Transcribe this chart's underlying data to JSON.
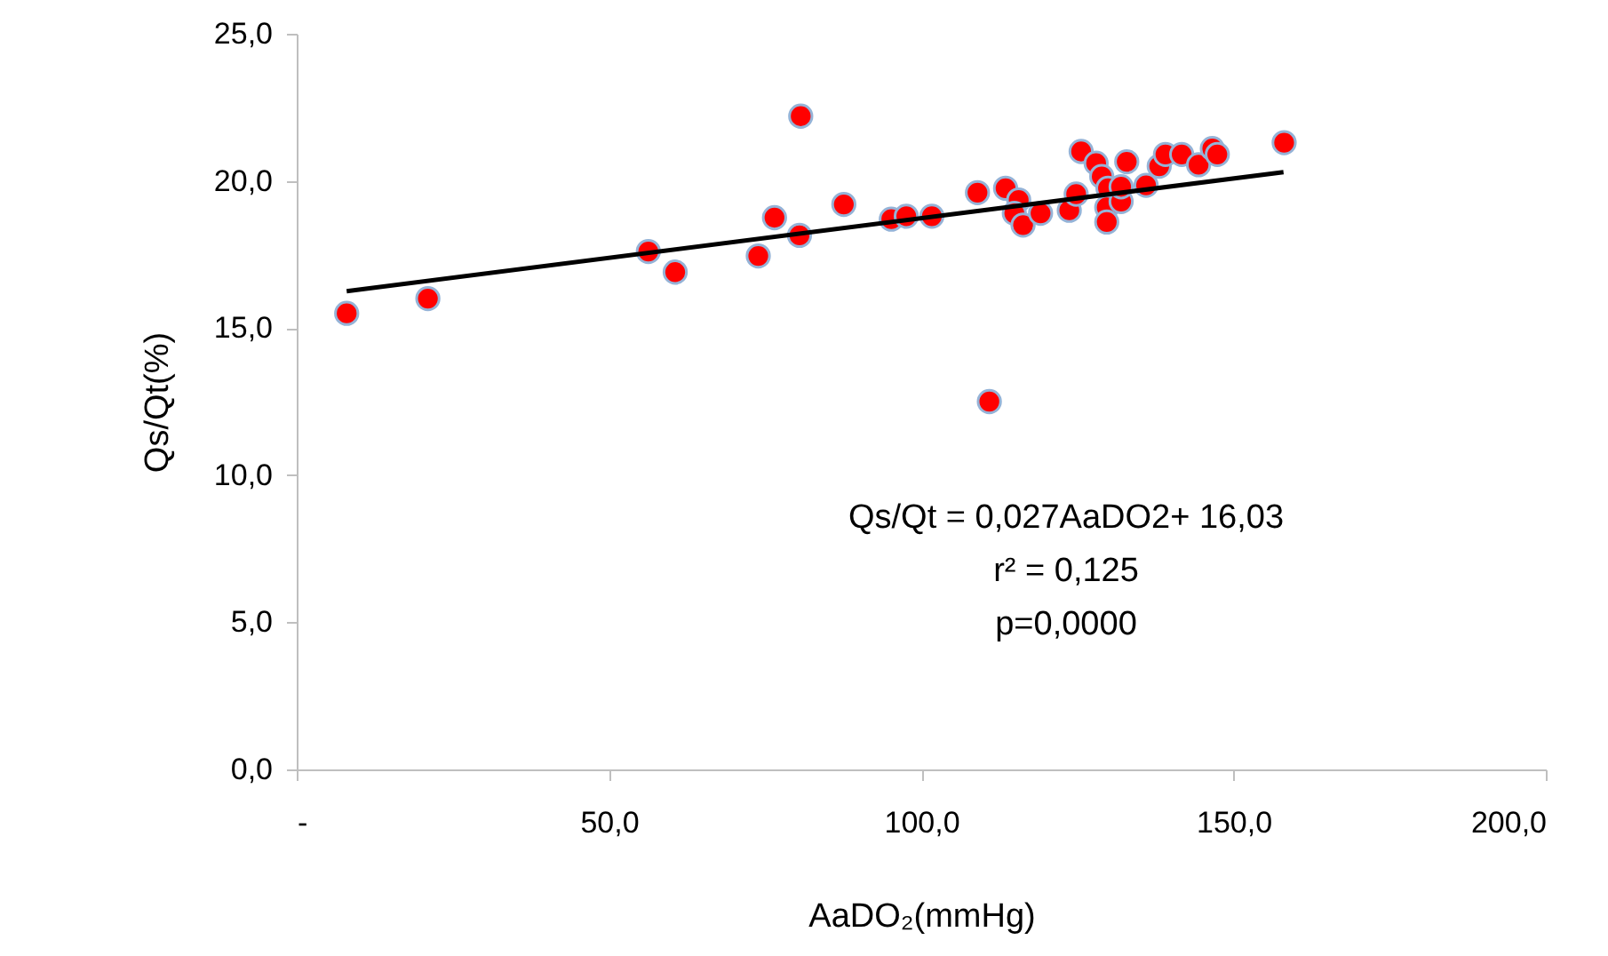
{
  "chart_data": {
    "type": "scatter",
    "xlabel": "AaDO₂(mmHg)",
    "ylabel": "Qs/Qt(%)",
    "xlim": [
      0,
      200
    ],
    "ylim": [
      0,
      25
    ],
    "xticks": [
      {
        "value": 0,
        "label": "-"
      },
      {
        "value": 50,
        "label": "50,0"
      },
      {
        "value": 100,
        "label": "100,0"
      },
      {
        "value": 150,
        "label": "150,0"
      },
      {
        "value": 200,
        "label": "200,0"
      }
    ],
    "yticks": [
      {
        "value": 0,
        "label": "0,0"
      },
      {
        "value": 5,
        "label": "5,0"
      },
      {
        "value": 10,
        "label": "10,0"
      },
      {
        "value": 15,
        "label": "15,0"
      },
      {
        "value": 20,
        "label": "20,0"
      },
      {
        "value": 25,
        "label": "25,0"
      }
    ],
    "grid": false,
    "marker": "circle",
    "series": [
      {
        "color": "#ff0000",
        "x": [
          8.0,
          21.0,
          56.3,
          60.6,
          73.9,
          76.5,
          80.5,
          80.7,
          87.6,
          95.2,
          97.6,
          101.7,
          109.0,
          110.9,
          113.5,
          115.6,
          114.9,
          116.3,
          119.1,
          123.7,
          124.8,
          125.6,
          128.0,
          128.9,
          129.9,
          129.7,
          129.7,
          132.0,
          132.0,
          132.9,
          136.0,
          138.1,
          139.1,
          141.7,
          144.4,
          146.6,
          147.4,
          158.1
        ],
        "values": [
          15.5,
          16.0,
          17.6,
          16.9,
          17.45,
          18.75,
          18.15,
          22.2,
          19.2,
          18.7,
          18.8,
          18.8,
          19.6,
          12.5,
          19.75,
          19.35,
          18.9,
          18.5,
          18.9,
          19.0,
          19.55,
          21.0,
          20.6,
          20.15,
          19.75,
          19.1,
          18.6,
          19.3,
          19.8,
          20.65,
          19.85,
          20.5,
          20.9,
          20.9,
          20.55,
          21.1,
          20.9,
          21.3
        ]
      },
      {
        "type": "line",
        "color": "#000000",
        "line_style": "solid",
        "marker": "none",
        "x": [
          8,
          158
        ],
        "values": [
          16.25,
          20.3
        ]
      }
    ],
    "annotations": [
      "Qs/Qt = 0,027AaDO2+ 16,03",
      "r² = 0,125",
      "p=0,0000"
    ]
  }
}
